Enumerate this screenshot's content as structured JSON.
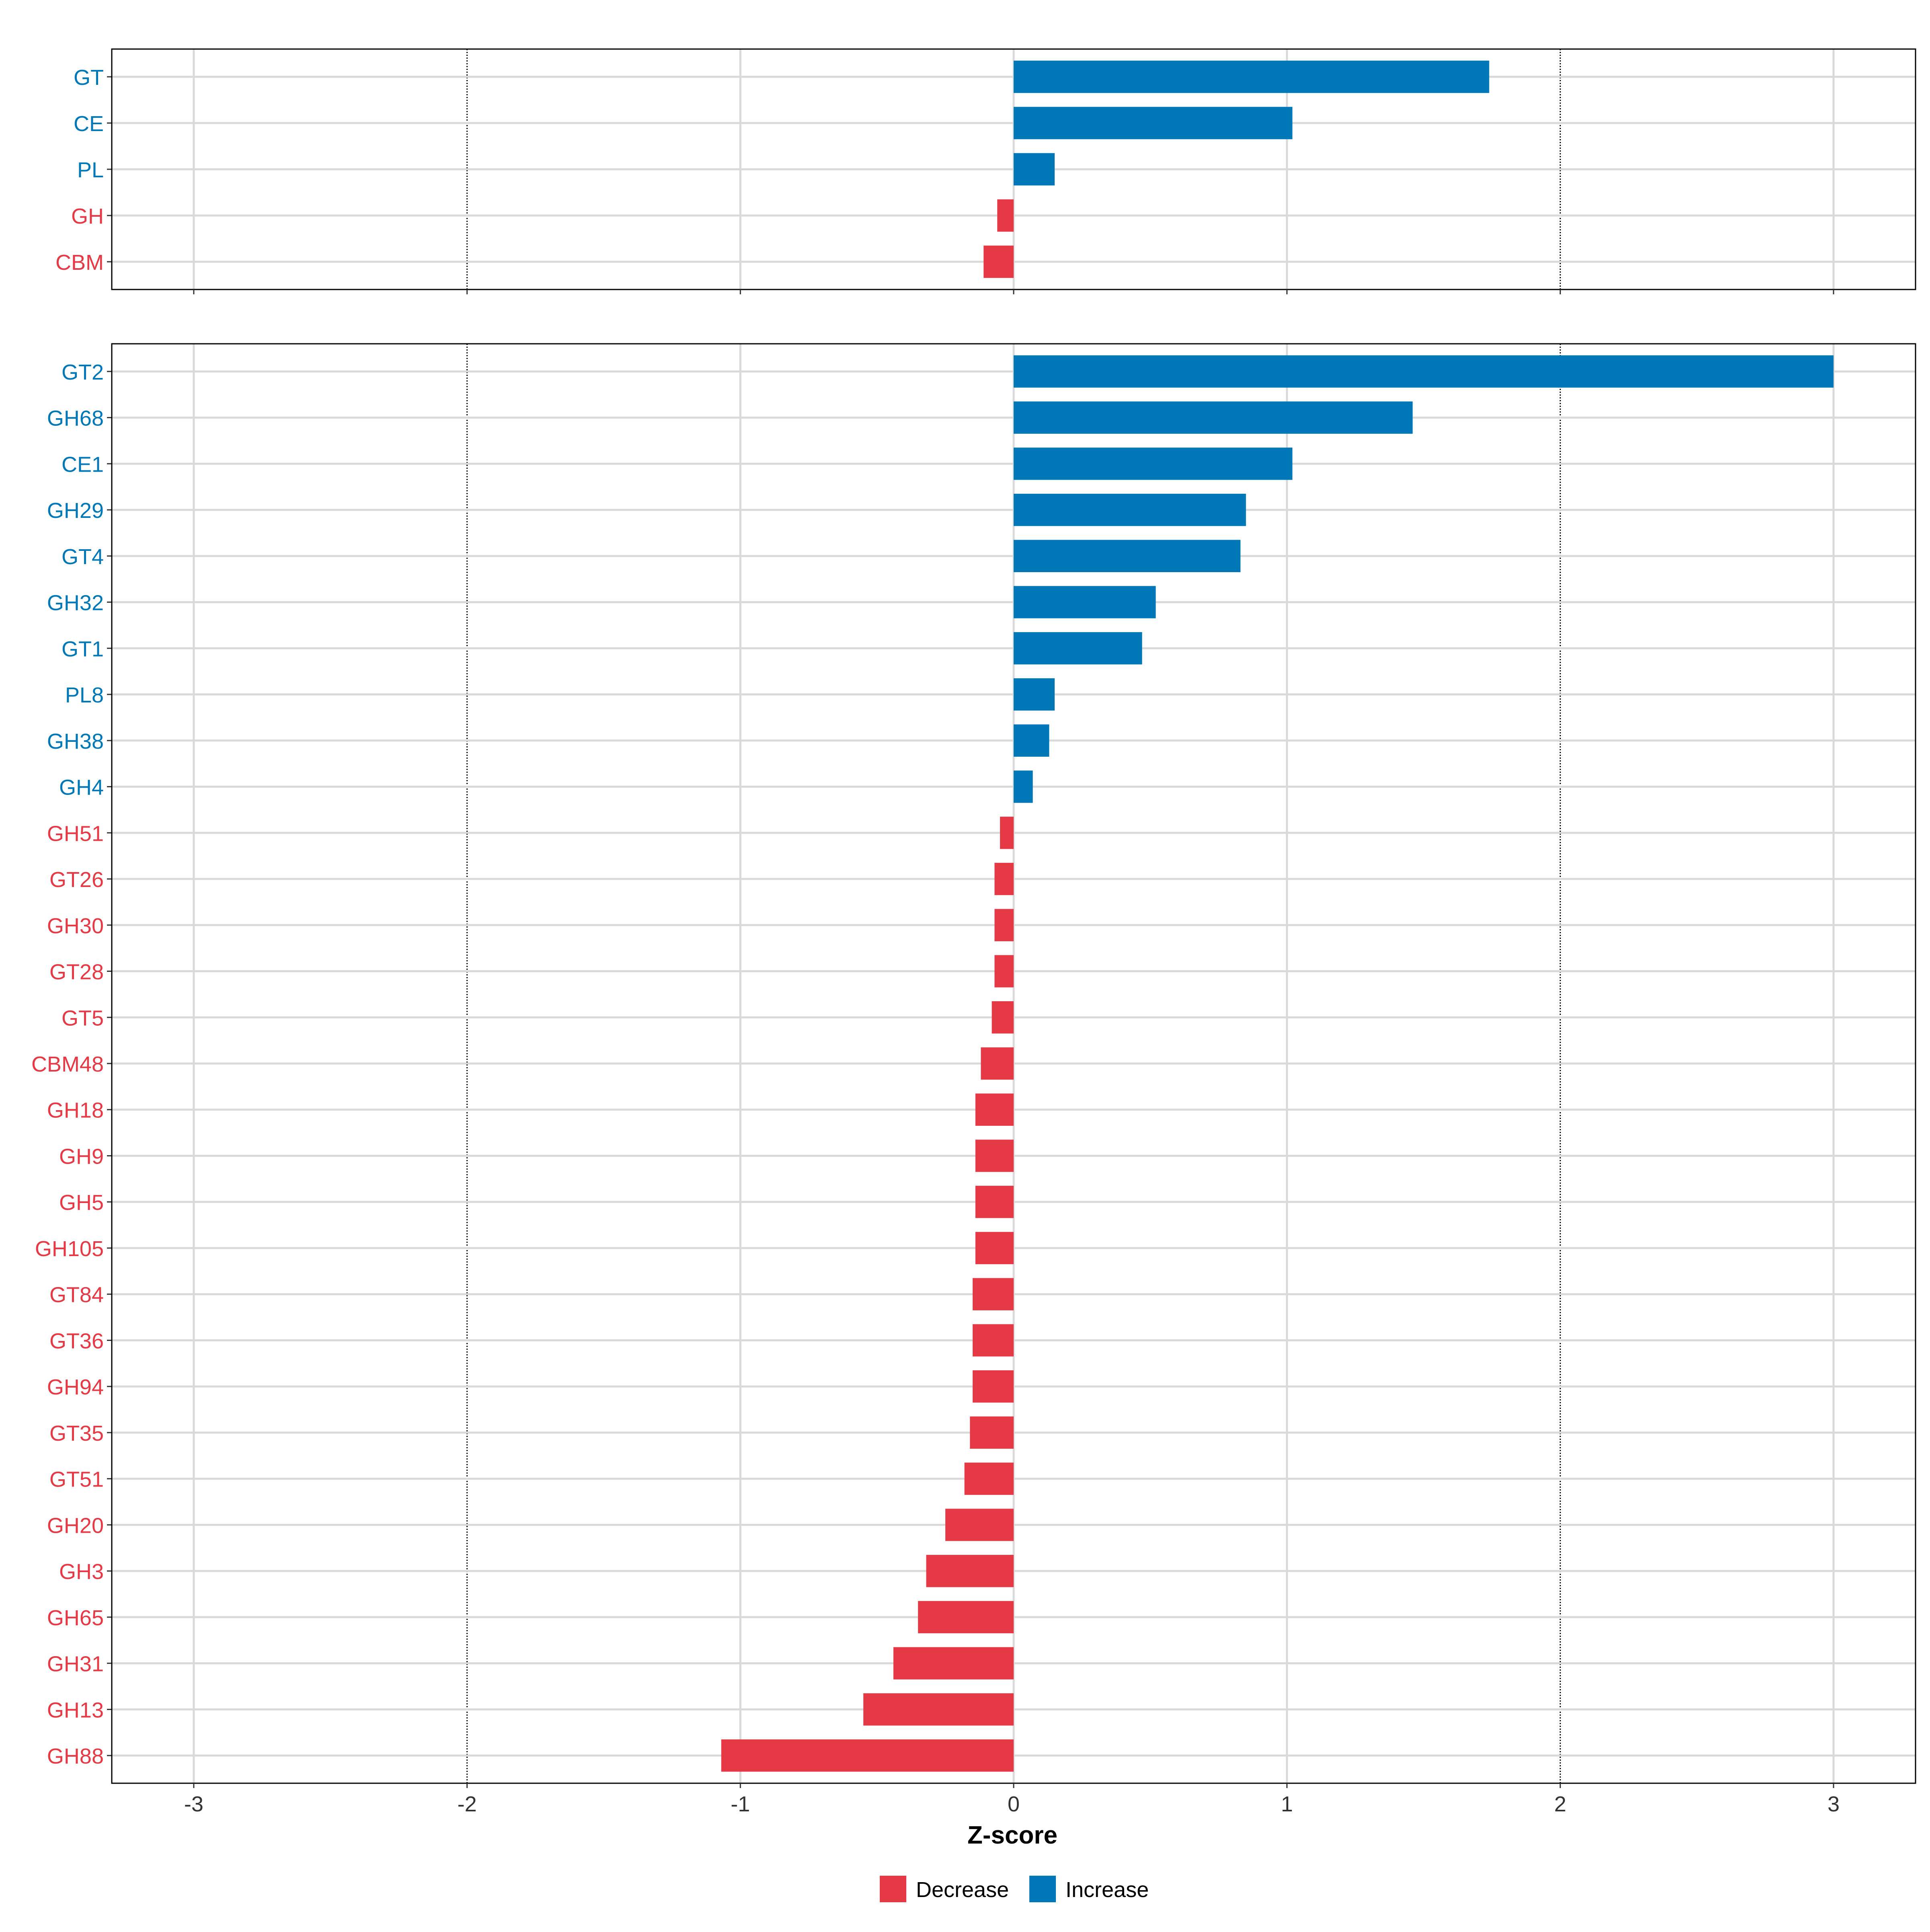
{
  "chart_data": [
    {
      "panel": "top",
      "type": "bar",
      "orientation": "horizontal",
      "categories": [
        "GT",
        "CE",
        "PL",
        "GH",
        "CBM"
      ],
      "values": [
        1.74,
        1.02,
        0.15,
        -0.06,
        -0.11
      ],
      "xlim": [
        -3.3,
        3.3
      ],
      "xticks": [
        -3,
        -2,
        -1,
        0,
        1,
        2,
        3
      ],
      "reference_lines": [
        -2,
        2
      ]
    },
    {
      "panel": "bottom",
      "type": "bar",
      "orientation": "horizontal",
      "categories": [
        "GT2",
        "GH68",
        "CE1",
        "GH29",
        "GT4",
        "GH32",
        "GT1",
        "PL8",
        "GH38",
        "GH4",
        "GH51",
        "GT26",
        "GH30",
        "GT28",
        "GT5",
        "CBM48",
        "GH18",
        "GH9",
        "GH5",
        "GH105",
        "GT84",
        "GT36",
        "GH94",
        "GT35",
        "GT51",
        "GH20",
        "GH3",
        "GH65",
        "GH31",
        "GH13",
        "GH88"
      ],
      "values": [
        3.0,
        1.46,
        1.02,
        0.85,
        0.83,
        0.52,
        0.47,
        0.15,
        0.13,
        0.07,
        -0.05,
        -0.07,
        -0.07,
        -0.07,
        -0.08,
        -0.12,
        -0.14,
        -0.14,
        -0.14,
        -0.14,
        -0.15,
        -0.15,
        -0.15,
        -0.16,
        -0.18,
        -0.25,
        -0.32,
        -0.35,
        -0.44,
        -0.55,
        -1.07
      ],
      "xlim": [
        -3.3,
        3.3
      ],
      "xticks": [
        -3,
        -2,
        -1,
        0,
        1,
        2,
        3
      ],
      "xlabel": "Z-score",
      "reference_lines": [
        -2,
        2
      ]
    }
  ],
  "tick_labels": [
    "-3",
    "-2",
    "-1",
    "0",
    "1",
    "2",
    "3"
  ],
  "legend": {
    "items": [
      {
        "label": "Decrease",
        "color": "#E63946"
      },
      {
        "label": "Increase",
        "color": "#0077B6"
      }
    ],
    "position": "bottom"
  },
  "colors": {
    "decrease": "#E63946",
    "increase": "#0077B6",
    "grid": "#D9D9D9",
    "axis": "#333333"
  }
}
